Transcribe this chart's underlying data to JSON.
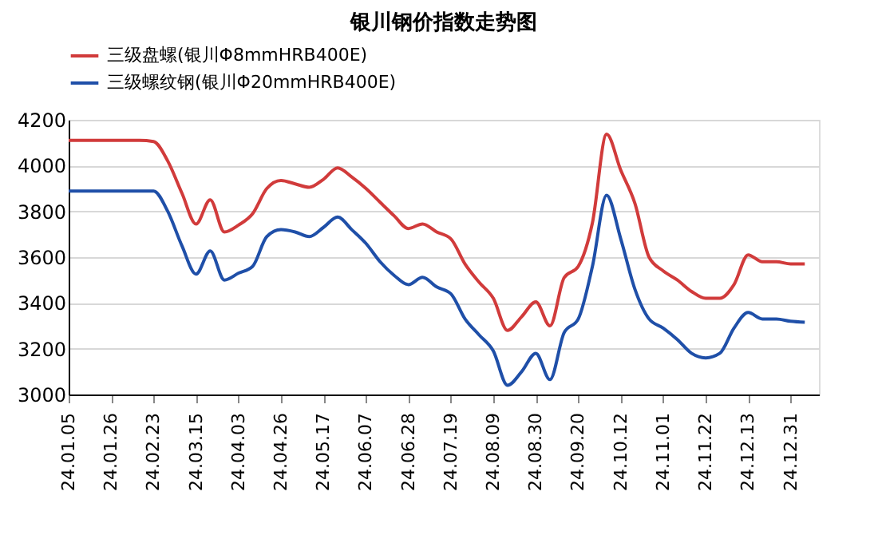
{
  "chart_data": {
    "type": "line",
    "title": "银川钢价指数走势图",
    "categories": [
      "24.01.05",
      null,
      null,
      "24.01.26",
      null,
      null,
      "24.02.23",
      null,
      null,
      "24.03.15",
      null,
      null,
      "24.04.03",
      null,
      null,
      "24.04.26",
      null,
      null,
      "24.05.17",
      null,
      null,
      "24.06.07",
      null,
      null,
      "24.06.28",
      null,
      null,
      "24.07.19",
      null,
      null,
      "24.08.09",
      null,
      null,
      "24.08.30",
      null,
      null,
      "24.09.20",
      null,
      null,
      "24.10.12",
      null,
      null,
      "24.11.01",
      null,
      null,
      "24.11.22",
      null,
      null,
      "24.12.13",
      null,
      null,
      "24.12.31",
      null
    ],
    "series": [
      {
        "name": "三级盘螺(银川Φ8mmHRB400E)",
        "color": "#d13b3b",
        "values": [
          4110,
          4110,
          4110,
          4110,
          4110,
          4110,
          4105,
          4020,
          3880,
          3745,
          3850,
          3710,
          3740,
          3790,
          3900,
          3935,
          3920,
          3905,
          3940,
          3990,
          3950,
          3900,
          3840,
          3780,
          3725,
          3745,
          3710,
          3680,
          3570,
          3490,
          3420,
          3280,
          3340,
          3405,
          3300,
          3510,
          3560,
          3750,
          4137,
          3980,
          3835,
          3600,
          3540,
          3500,
          3450,
          3420,
          3420,
          3480,
          3610,
          3580,
          3580,
          3570,
          3570
        ]
      },
      {
        "name": "三级螺纹钢(银川Φ20mmHRB400E)",
        "color": "#1f4fa8",
        "values": [
          3889,
          3889,
          3889,
          3889,
          3889,
          3889,
          3889,
          3800,
          3650,
          3526,
          3627,
          3500,
          3530,
          3560,
          3690,
          3720,
          3710,
          3690,
          3730,
          3775,
          3720,
          3660,
          3580,
          3520,
          3480,
          3512,
          3470,
          3440,
          3330,
          3260,
          3190,
          3040,
          3100,
          3180,
          3065,
          3270,
          3330,
          3560,
          3870,
          3680,
          3460,
          3330,
          3290,
          3240,
          3180,
          3160,
          3180,
          3290,
          3358,
          3330,
          3330,
          3320,
          3316
        ]
      }
    ],
    "ylim": [
      3000,
      4200
    ],
    "yticks": [
      3000,
      3200,
      3400,
      3600,
      3800,
      4000,
      4200
    ],
    "grid": "y",
    "legend": "top",
    "marker": "none",
    "line_style": "solid"
  }
}
